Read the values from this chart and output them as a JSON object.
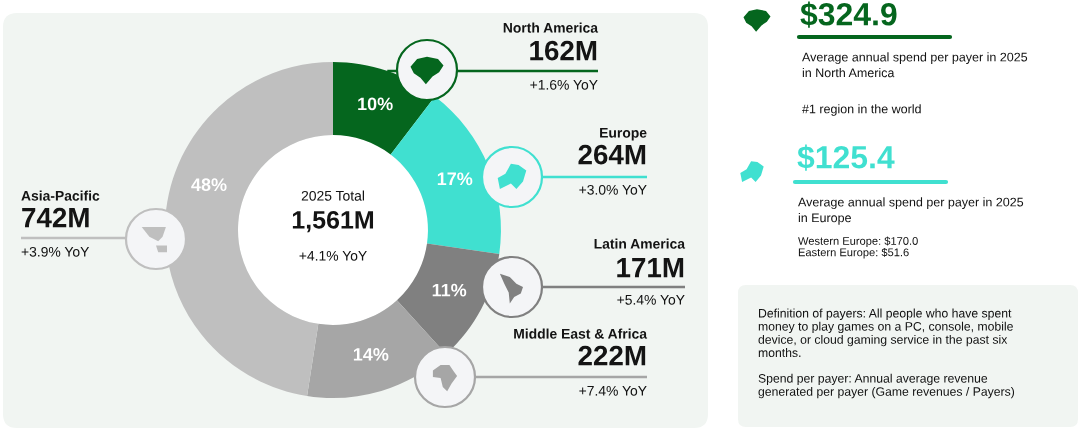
{
  "chart_data": [
    {
      "type": "donut",
      "categories": [
        "North America",
        "Europe",
        "Latin America",
        "Middle East & Africa",
        "Asia-Pacific"
      ],
      "values": [
        162,
        264,
        171,
        222,
        742
      ],
      "value_labels": [
        "162M",
        "264M",
        "171M",
        "222M",
        "742M"
      ],
      "colors": [
        "#05661e",
        "#40e0d0",
        "#808080",
        "#a6a6a6",
        "#bfbfbf"
      ],
      "annotations": [
        "10%",
        "17%",
        "11%",
        "14%",
        "48%",
        "+1.6% YoY",
        "+3.0% YoY",
        "+5.4% YoY",
        "+7.4% YoY",
        "+3.9% YoY",
        "2025 Total",
        "1,561M",
        "+4.1% YoY"
      ]
    },
    {
      "type": "other",
      "colors": [
        "#05661e",
        "#40e0d0"
      ],
      "annotations": [
        "$324.9",
        "Average annual spend per payer in 2025\nin North America",
        "#1 region in the world",
        "$125.4",
        "Average annual spend per payer in 2025\nin Europe",
        "Western Europe: $170.0\nEastern Europe: $51.6",
        "Definition of payers: All people who have spent\nmoney to play games on a PC, console, mobile\ndevice, or cloud gaming service in the past six\nmonths.",
        "Spend per payer: Annual average revenue\ngenerated per payer (Game revenues / Payers)"
      ]
    }
  ]
}
